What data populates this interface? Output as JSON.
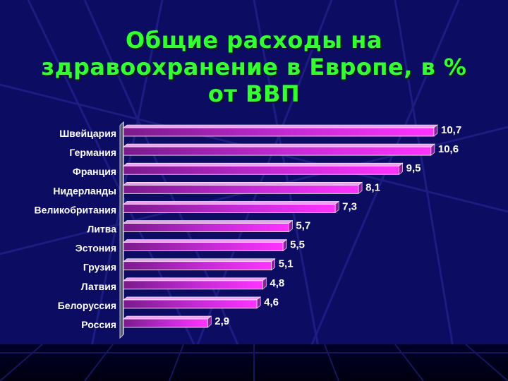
{
  "slide": {
    "title_lines": [
      "Общие расходы на",
      "здравоохранение в Европе, в %",
      "от ВВП"
    ]
  },
  "colors": {
    "background": "#0c0c63",
    "title": "#33ff33",
    "bar_front": "#ff33ff",
    "bar_dark": "#7a1a8c",
    "text": "#ffffff"
  },
  "chart_data": {
    "type": "bar",
    "orientation": "horizontal",
    "title": "Общие расходы на здравоохранение в Европе, в % от ВВП",
    "categories": [
      "Швейцария",
      "Германия",
      "Франция",
      "Нидерланды",
      "Великобритания",
      "Литва",
      "Эстония",
      "Грузия",
      "Латвия",
      "Белоруссия",
      "Россия"
    ],
    "values": [
      10.7,
      10.6,
      9.5,
      8.1,
      7.3,
      5.7,
      5.5,
      5.1,
      4.8,
      4.6,
      2.9
    ],
    "value_labels": [
      "10,7",
      "10,6",
      "9,5",
      "8,1",
      "7,3",
      "5,7",
      "5,5",
      "5,1",
      "4,8",
      "4,6",
      "2,9"
    ],
    "xlim": [
      0,
      10.7
    ],
    "grid": false,
    "legend": "none"
  }
}
